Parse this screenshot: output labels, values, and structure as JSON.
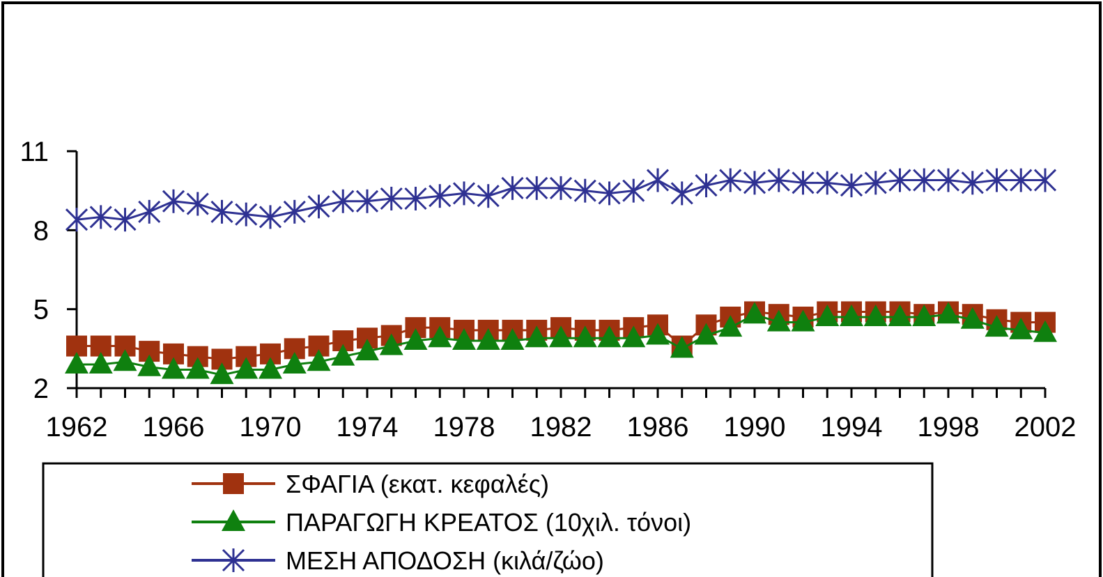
{
  "chart_data": {
    "type": "line",
    "title": "",
    "xlabel": "",
    "ylabel": "",
    "x": [
      1962,
      1963,
      1964,
      1965,
      1966,
      1967,
      1968,
      1969,
      1970,
      1971,
      1972,
      1973,
      1974,
      1975,
      1976,
      1977,
      1978,
      1979,
      1980,
      1981,
      1982,
      1983,
      1984,
      1985,
      1986,
      1987,
      1988,
      1989,
      1990,
      1991,
      1992,
      1993,
      1994,
      1995,
      1996,
      1997,
      1998,
      1999,
      2000,
      2001,
      2002
    ],
    "xlim": [
      1962,
      2002
    ],
    "ylim": [
      2,
      11
    ],
    "x_ticks": [
      "1962",
      "1966",
      "1970",
      "1974",
      "1978",
      "1982",
      "1986",
      "1990",
      "1994",
      "1998",
      "2002"
    ],
    "y_ticks": [
      "2",
      "5",
      "8",
      "11"
    ],
    "y_tick_values": [
      2,
      5,
      8,
      11
    ],
    "grid": false,
    "legend_position": "bottom",
    "series": [
      {
        "name": "ΣΦΑΓΙΑ (εκατ. κεφαλές)",
        "color": "#a0320f",
        "marker": "square",
        "values": [
          3.6,
          3.6,
          3.6,
          3.4,
          3.3,
          3.2,
          3.1,
          3.2,
          3.3,
          3.5,
          3.6,
          3.8,
          3.9,
          4.0,
          4.3,
          4.3,
          4.2,
          4.2,
          4.2,
          4.2,
          4.3,
          4.2,
          4.2,
          4.3,
          4.4,
          3.6,
          4.4,
          4.7,
          4.9,
          4.8,
          4.7,
          4.9,
          4.9,
          4.9,
          4.9,
          4.8,
          4.9,
          4.8,
          4.6,
          4.5,
          4.5
        ]
      },
      {
        "name": "ΠΑΡΑΓΩΓΗ ΚΡΕΑΤΟΣ (10χιλ. τόνοι)",
        "color": "#0f800f",
        "marker": "triangle",
        "values": [
          2.9,
          2.9,
          3.0,
          2.8,
          2.7,
          2.7,
          2.5,
          2.7,
          2.7,
          2.9,
          3.0,
          3.2,
          3.4,
          3.6,
          3.8,
          3.9,
          3.8,
          3.8,
          3.8,
          3.9,
          3.9,
          3.9,
          3.9,
          3.9,
          4.0,
          3.5,
          4.0,
          4.3,
          4.8,
          4.5,
          4.5,
          4.7,
          4.7,
          4.7,
          4.7,
          4.7,
          4.8,
          4.6,
          4.3,
          4.2,
          4.1
        ]
      },
      {
        "name": "ΜΕΣΗ ΑΠΟΔΟΣΗ (κιλά/ζώο)",
        "color": "#2e3192",
        "marker": "asterisk",
        "values": [
          8.4,
          8.5,
          8.4,
          8.7,
          9.1,
          9.0,
          8.7,
          8.6,
          8.5,
          8.7,
          8.9,
          9.1,
          9.1,
          9.2,
          9.2,
          9.3,
          9.4,
          9.3,
          9.6,
          9.6,
          9.6,
          9.5,
          9.4,
          9.5,
          9.9,
          9.4,
          9.7,
          9.9,
          9.8,
          9.9,
          9.8,
          9.8,
          9.7,
          9.8,
          9.9,
          9.9,
          9.9,
          9.8,
          9.9,
          9.9,
          9.9
        ]
      }
    ]
  }
}
